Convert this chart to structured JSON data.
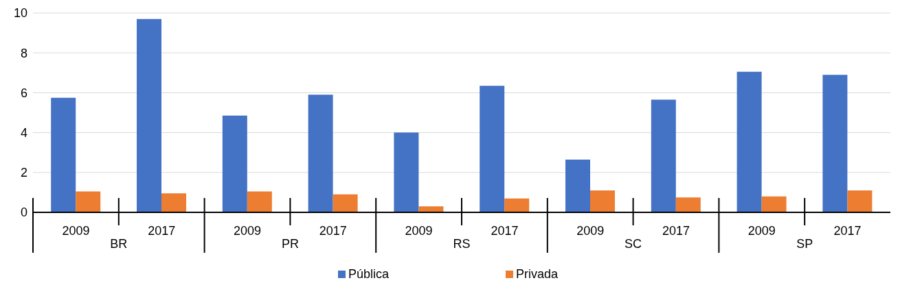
{
  "chart_data": {
    "type": "bar",
    "categories": [
      "2009",
      "2017",
      "2009",
      "2017",
      "2009",
      "2017",
      "2009",
      "2017",
      "2009",
      "2017"
    ],
    "annotations": [
      "BR",
      "PR",
      "RS",
      "SC",
      "SP"
    ],
    "series": [
      {
        "name": "Pública",
        "color": "#4472c4",
        "values": [
          5.75,
          9.7,
          4.85,
          5.9,
          4.0,
          6.35,
          2.65,
          5.65,
          7.05,
          6.9
        ]
      },
      {
        "name": "Privada",
        "color": "#ed7d31",
        "values": [
          1.05,
          0.95,
          1.05,
          0.9,
          0.3,
          0.7,
          1.1,
          0.75,
          0.8,
          1.1
        ]
      }
    ],
    "ylim": [
      0,
      10
    ],
    "yticks": [
      0,
      2,
      4,
      6,
      8,
      10
    ],
    "grid": "y",
    "legend": "bottom"
  }
}
